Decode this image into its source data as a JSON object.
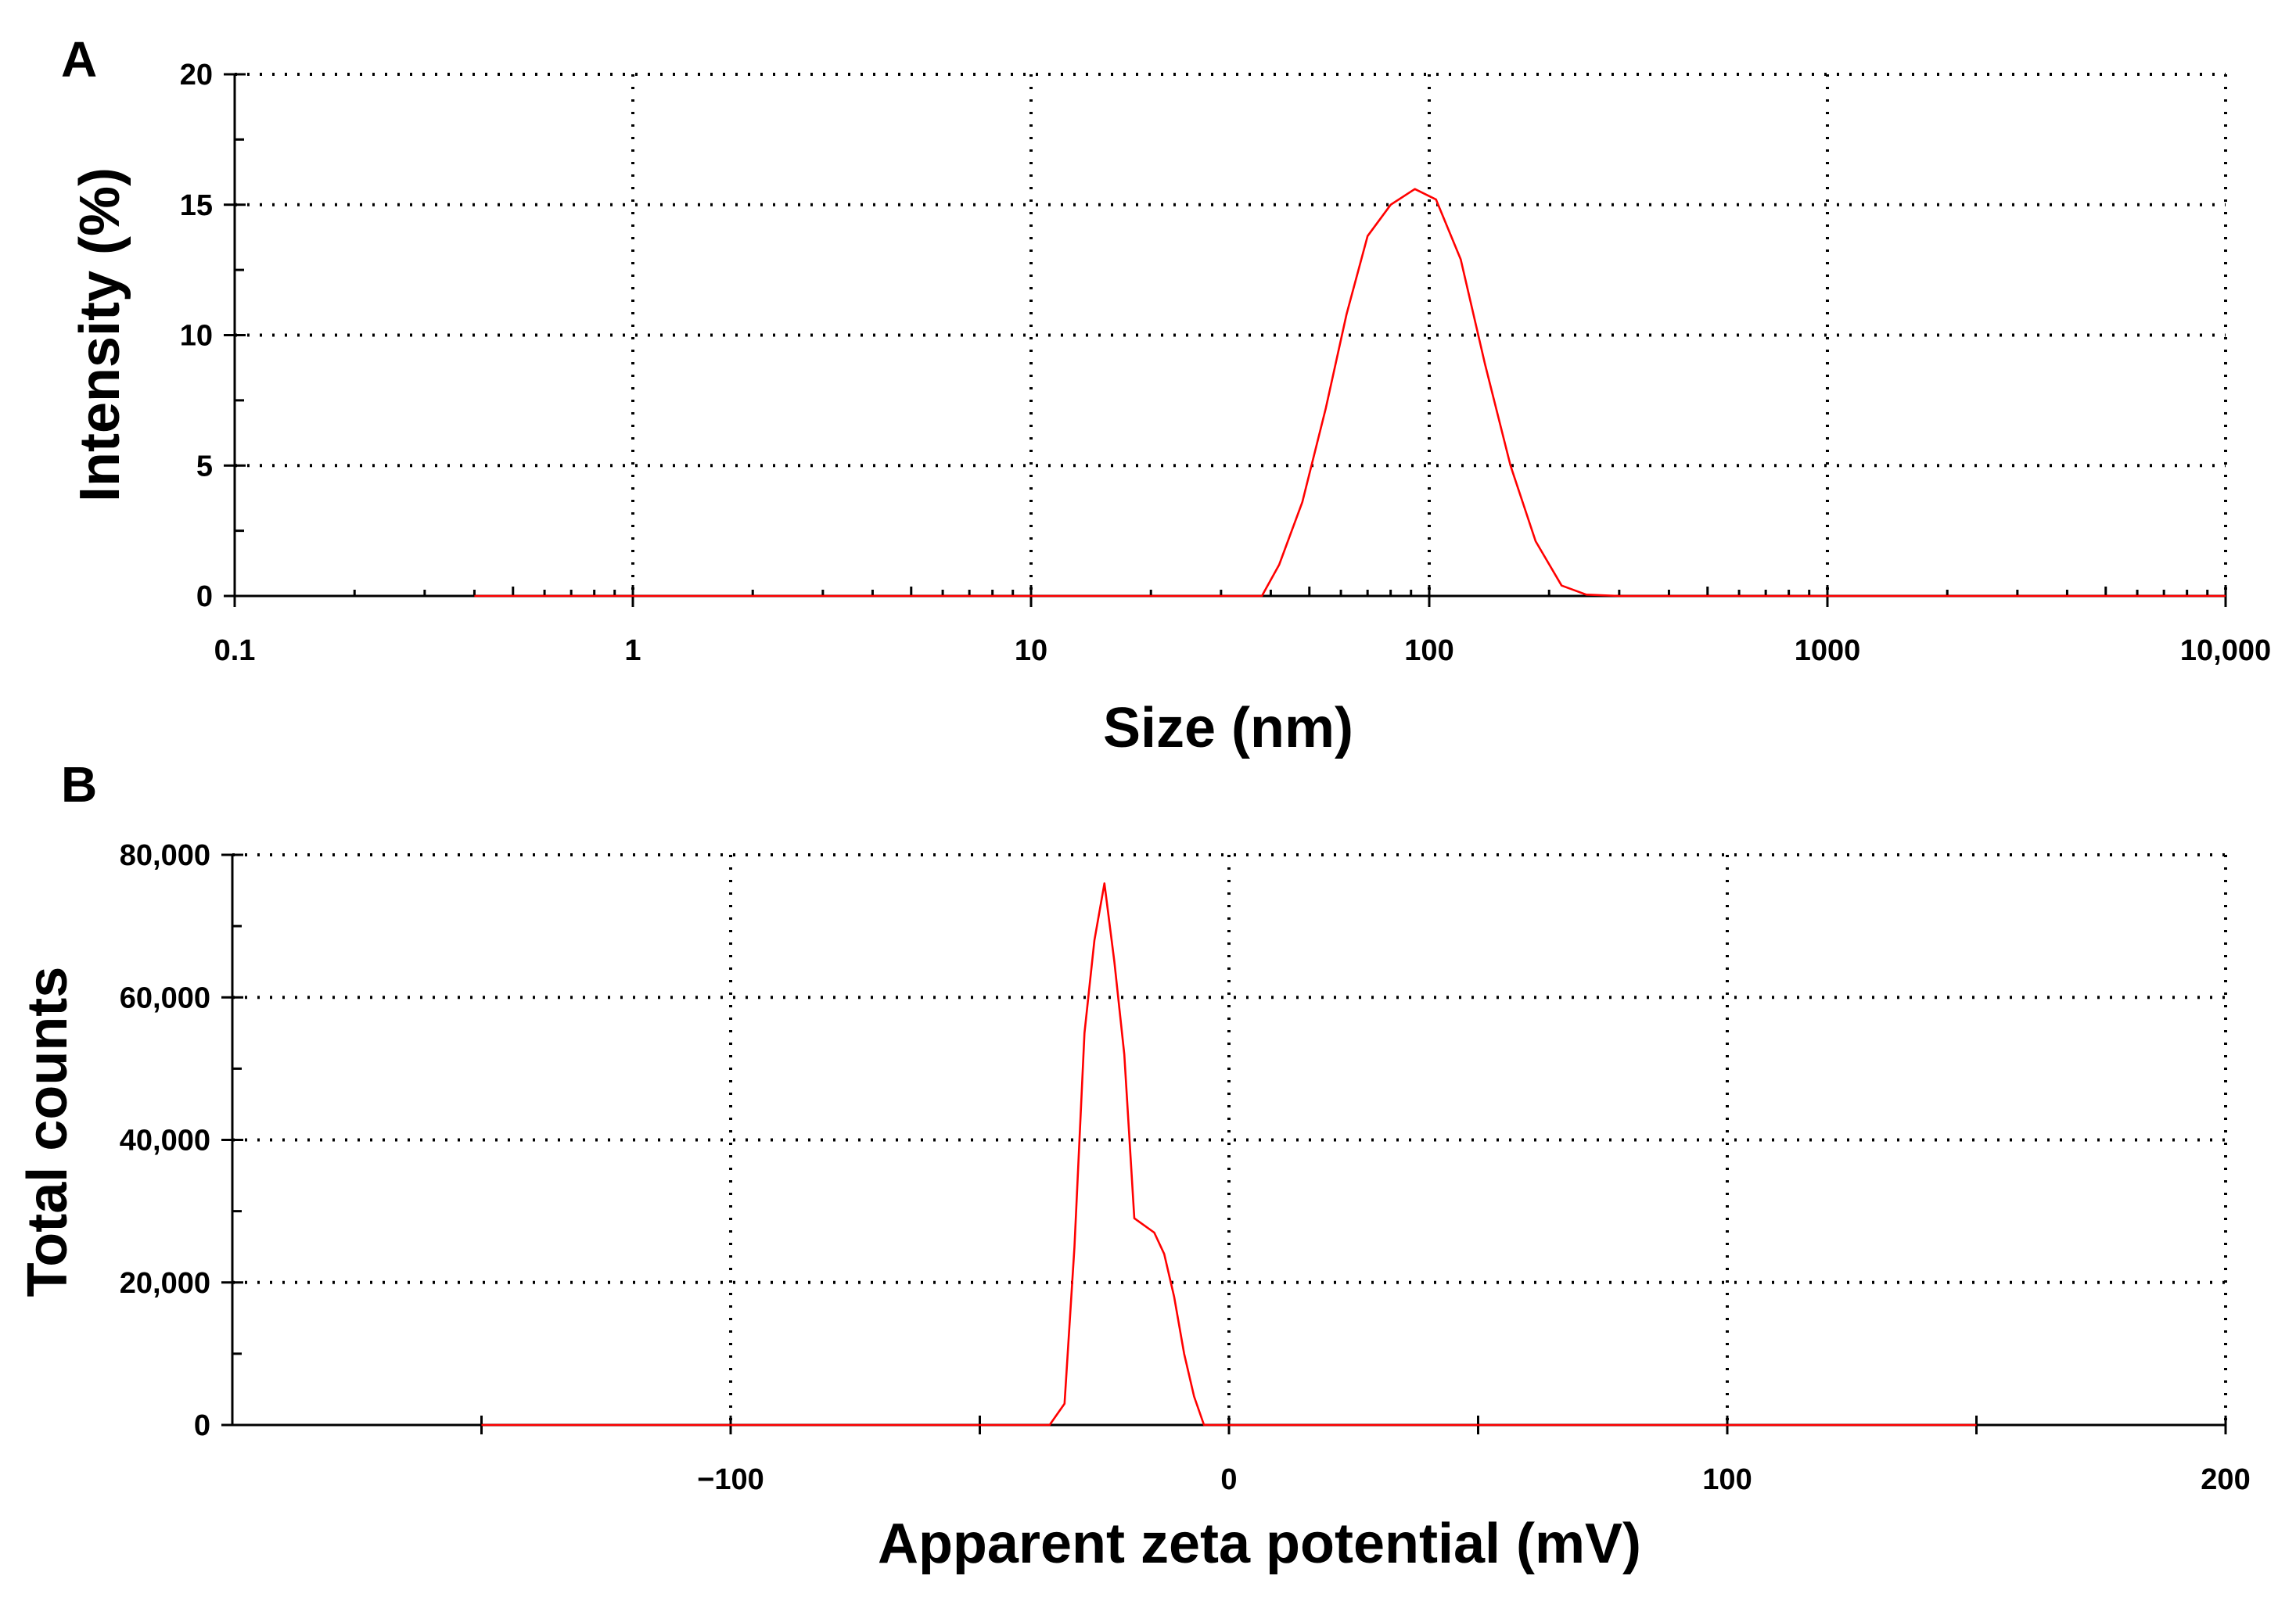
{
  "chart_data": [
    {
      "type": "line",
      "panel_label": "A",
      "title": "",
      "xlabel": "Size (nm)",
      "ylabel": "Intensity (%)",
      "x_scale": "log",
      "xlim": [
        0.1,
        10000
      ],
      "ylim": [
        0,
        20
      ],
      "x_ticks": [
        0.1,
        1,
        10,
        100,
        1000,
        10000
      ],
      "x_tick_labels": [
        "0.1",
        "1",
        "10",
        "100",
        "1000",
        "10,000"
      ],
      "y_ticks": [
        0,
        5,
        10,
        15,
        20
      ],
      "y_tick_labels": [
        "0",
        "5",
        "10",
        "15",
        "20"
      ],
      "grid": true,
      "line_color": "#ff0000",
      "series": [
        {
          "x": [
            0.4,
            38,
            42,
            48,
            55,
            62,
            70,
            80,
            92,
            104,
            120,
            138,
            160,
            185,
            215,
            248,
            300,
            1000,
            10000
          ],
          "y": [
            0,
            0,
            1.2,
            3.6,
            7.2,
            10.8,
            13.8,
            15.0,
            15.6,
            15.2,
            12.9,
            8.9,
            5.0,
            2.1,
            0.4,
            0.05,
            0,
            0,
            0
          ]
        }
      ]
    },
    {
      "type": "line",
      "panel_label": "B",
      "title": "",
      "xlabel": "Apparent zeta potential (mV)",
      "ylabel": "Total counts",
      "xlim": [
        -200,
        200
      ],
      "ylim": [
        0,
        80000
      ],
      "x_ticks": [
        -100,
        0,
        100,
        200
      ],
      "x_tick_labels": [
        "−100",
        "0",
        "100",
        "200"
      ],
      "y_ticks": [
        0,
        20000,
        40000,
        60000,
        80000
      ],
      "y_tick_labels": [
        "0",
        "20,000",
        "40,000",
        "60,000",
        "80,000"
      ],
      "grid": true,
      "line_color": "#ff0000",
      "series": [
        {
          "x": [
            -150,
            -36,
            -33,
            -31,
            -29,
            -27,
            -25,
            -23,
            -21,
            -19,
            -17,
            -15,
            -13,
            -11,
            -9,
            -7,
            -5,
            -4,
            0,
            150
          ],
          "y": [
            0,
            0,
            3000,
            25000,
            55000,
            68000,
            76000,
            65000,
            52000,
            29000,
            28000,
            27000,
            24000,
            18000,
            10000,
            4000,
            0,
            0,
            0,
            0
          ]
        }
      ]
    }
  ]
}
